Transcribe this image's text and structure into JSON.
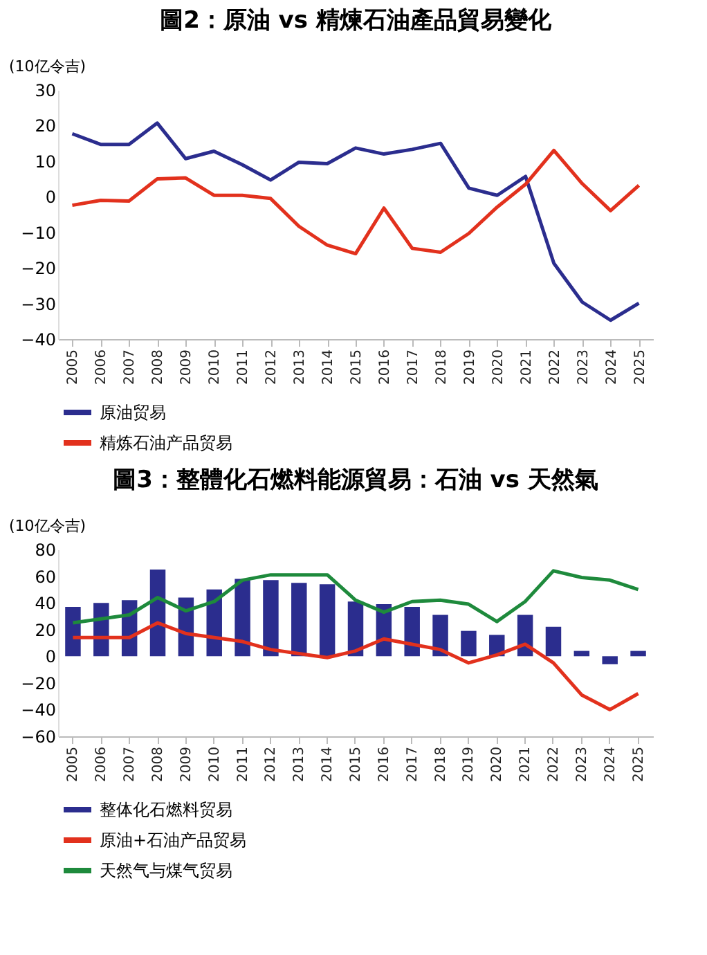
{
  "chart_data": [
    {
      "type": "line",
      "title": "圖2：原油 vs 精煉石油產品貿易變化",
      "ylabel": "(10亿令吉)",
      "categories": [
        "2005",
        "2006",
        "2007",
        "2008",
        "2009",
        "2010",
        "2011",
        "2012",
        "2013",
        "2014",
        "2015",
        "2016",
        "2017",
        "2018",
        "2019",
        "2020",
        "2021",
        "2022",
        "2023",
        "2024",
        "2025"
      ],
      "series": [
        {
          "name": "原油贸易",
          "color": "#2b2d8e",
          "values": [
            17.7,
            14.7,
            14.7,
            20.7,
            10.7,
            12.8,
            9,
            4.7,
            9.7,
            9.3,
            13.7,
            12,
            13.3,
            15,
            2.4,
            0.4,
            5.7,
            -18.7,
            -29.6,
            -34.7,
            -29.9
          ]
        },
        {
          "name": "精炼石油产品贸易",
          "color": "#e2311d",
          "values": [
            -2.4,
            -1,
            -1.2,
            5,
            5.3,
            0.4,
            0.4,
            -0.5,
            -8.3,
            -13.6,
            -16,
            -3.2,
            -14.5,
            -15.6,
            -10.3,
            -2.9,
            3.5,
            13,
            3.7,
            -3.9,
            3.2
          ]
        }
      ],
      "ylim": [
        -40,
        30
      ],
      "yticks": [
        -40,
        -30,
        -20,
        -10,
        0,
        10,
        20,
        30
      ],
      "grid": false,
      "legend": "bottom"
    },
    {
      "type": "bar",
      "title": "圖3：整體化石燃料能源貿易：石油 vs 天然氣",
      "ylabel": "(10亿令吉)",
      "categories": [
        "2005",
        "2006",
        "2007",
        "2008",
        "2009",
        "2010",
        "2011",
        "2012",
        "2013",
        "2014",
        "2015",
        "2016",
        "2017",
        "2018",
        "2019",
        "2020",
        "2021",
        "2022",
        "2023",
        "2024",
        "2025"
      ],
      "series": [
        {
          "name": "整体化石燃料贸易",
          "type": "bar",
          "color": "#2b2d8e",
          "values": [
            37,
            40,
            42,
            65,
            44,
            50,
            58,
            57,
            55,
            54,
            41,
            39,
            37,
            31,
            19,
            16,
            31,
            22,
            4,
            -6,
            4
          ]
        },
        {
          "name": "原油+石油产品贸易",
          "type": "line",
          "color": "#e2311d",
          "values": [
            14,
            14,
            14,
            25,
            17,
            14,
            11,
            5,
            2,
            -1,
            4,
            13,
            9,
            5,
            -5,
            1,
            9,
            -5,
            -29,
            -40,
            -28
          ]
        },
        {
          "name": "天然气与煤气贸易",
          "type": "line",
          "color": "#1e8a3c",
          "values": [
            25,
            28,
            31,
            44,
            34,
            41,
            57,
            61,
            61,
            61,
            42,
            33,
            41,
            42,
            39,
            26,
            41,
            64,
            59,
            57,
            50
          ]
        }
      ],
      "ylim": [
        -60,
        80
      ],
      "yticks": [
        -60,
        -40,
        -20,
        0,
        20,
        40,
        60,
        80
      ],
      "grid": false,
      "legend": "bottom"
    }
  ]
}
